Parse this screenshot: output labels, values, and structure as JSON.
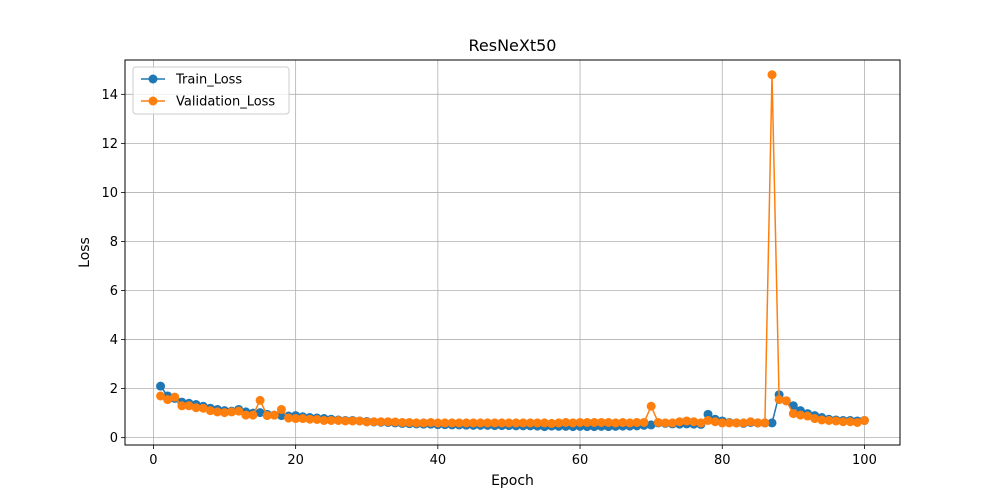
{
  "chart_data": {
    "type": "line",
    "title": "ResNeXt50",
    "xlabel": "Epoch",
    "ylabel": "Loss",
    "xlim": [
      -4,
      105
    ],
    "ylim": [
      -0.3,
      15.4
    ],
    "xticks": [
      0,
      20,
      40,
      60,
      80,
      100
    ],
    "yticks": [
      0,
      2,
      4,
      6,
      8,
      10,
      12,
      14
    ],
    "grid": true,
    "legend_position": "upper-left",
    "series": [
      {
        "name": "Train_Loss",
        "color": "#1f77b4",
        "x": [
          1,
          2,
          3,
          4,
          5,
          6,
          7,
          8,
          9,
          10,
          11,
          12,
          13,
          14,
          15,
          16,
          17,
          18,
          19,
          20,
          21,
          22,
          23,
          24,
          25,
          26,
          27,
          28,
          29,
          30,
          31,
          32,
          33,
          34,
          35,
          36,
          37,
          38,
          39,
          40,
          41,
          42,
          43,
          44,
          45,
          46,
          47,
          48,
          49,
          50,
          51,
          52,
          53,
          54,
          55,
          56,
          57,
          58,
          59,
          60,
          61,
          62,
          63,
          64,
          65,
          66,
          67,
          68,
          69,
          70,
          71,
          72,
          73,
          74,
          75,
          76,
          77,
          78,
          79,
          80,
          81,
          82,
          83,
          84,
          85,
          86,
          87,
          88,
          89,
          90,
          91,
          92,
          93,
          94,
          95,
          96,
          97,
          98,
          99,
          100
        ],
        "y": [
          2.1,
          1.7,
          1.6,
          1.45,
          1.4,
          1.35,
          1.28,
          1.2,
          1.15,
          1.1,
          1.08,
          1.15,
          1.05,
          1.0,
          1.02,
          0.95,
          0.92,
          0.9,
          0.88,
          0.9,
          0.85,
          0.82,
          0.8,
          0.78,
          0.75,
          0.72,
          0.7,
          0.7,
          0.68,
          0.66,
          0.64,
          0.63,
          0.62,
          0.6,
          0.58,
          0.57,
          0.56,
          0.55,
          0.55,
          0.53,
          0.53,
          0.52,
          0.52,
          0.51,
          0.5,
          0.5,
          0.5,
          0.49,
          0.49,
          0.49,
          0.48,
          0.48,
          0.48,
          0.47,
          0.45,
          0.47,
          0.46,
          0.46,
          0.45,
          0.46,
          0.45,
          0.45,
          0.46,
          0.45,
          0.46,
          0.47,
          0.47,
          0.48,
          0.5,
          0.52,
          0.6,
          0.58,
          0.56,
          0.55,
          0.56,
          0.55,
          0.54,
          0.95,
          0.75,
          0.68,
          0.62,
          0.6,
          0.58,
          0.62,
          0.6,
          0.6,
          0.6,
          1.75,
          1.5,
          1.3,
          1.1,
          0.98,
          0.9,
          0.82,
          0.75,
          0.72,
          0.7,
          0.7,
          0.68,
          0.7
        ]
      },
      {
        "name": "Validation_Loss",
        "color": "#ff7f0e",
        "x": [
          1,
          2,
          3,
          4,
          5,
          6,
          7,
          8,
          9,
          10,
          11,
          12,
          13,
          14,
          15,
          16,
          17,
          18,
          19,
          20,
          21,
          22,
          23,
          24,
          25,
          26,
          27,
          28,
          29,
          30,
          31,
          32,
          33,
          34,
          35,
          36,
          37,
          38,
          39,
          40,
          41,
          42,
          43,
          44,
          45,
          46,
          47,
          48,
          49,
          50,
          51,
          52,
          53,
          54,
          55,
          56,
          57,
          58,
          59,
          60,
          61,
          62,
          63,
          64,
          65,
          66,
          67,
          68,
          69,
          70,
          71,
          72,
          73,
          74,
          75,
          76,
          77,
          78,
          79,
          80,
          81,
          82,
          83,
          84,
          85,
          86,
          87,
          88,
          89,
          90,
          91,
          92,
          93,
          94,
          95,
          96,
          97,
          98,
          99,
          100
        ],
        "y": [
          1.7,
          1.55,
          1.65,
          1.3,
          1.3,
          1.22,
          1.2,
          1.1,
          1.05,
          1.02,
          1.05,
          1.08,
          0.92,
          0.92,
          1.52,
          0.9,
          0.92,
          1.15,
          0.8,
          0.78,
          0.78,
          0.75,
          0.74,
          0.7,
          0.7,
          0.7,
          0.68,
          0.68,
          0.68,
          0.64,
          0.65,
          0.65,
          0.65,
          0.64,
          0.62,
          0.62,
          0.6,
          0.6,
          0.62,
          0.6,
          0.6,
          0.6,
          0.6,
          0.6,
          0.6,
          0.6,
          0.6,
          0.6,
          0.6,
          0.6,
          0.6,
          0.6,
          0.6,
          0.6,
          0.6,
          0.58,
          0.6,
          0.62,
          0.6,
          0.62,
          0.62,
          0.62,
          0.62,
          0.62,
          0.6,
          0.62,
          0.6,
          0.62,
          0.62,
          1.28,
          0.62,
          0.6,
          0.6,
          0.65,
          0.68,
          0.65,
          0.6,
          0.7,
          0.65,
          0.6,
          0.6,
          0.6,
          0.6,
          0.65,
          0.6,
          0.6,
          14.8,
          1.55,
          1.5,
          0.98,
          0.92,
          0.88,
          0.78,
          0.72,
          0.7,
          0.68,
          0.65,
          0.65,
          0.62,
          0.7
        ]
      }
    ]
  }
}
